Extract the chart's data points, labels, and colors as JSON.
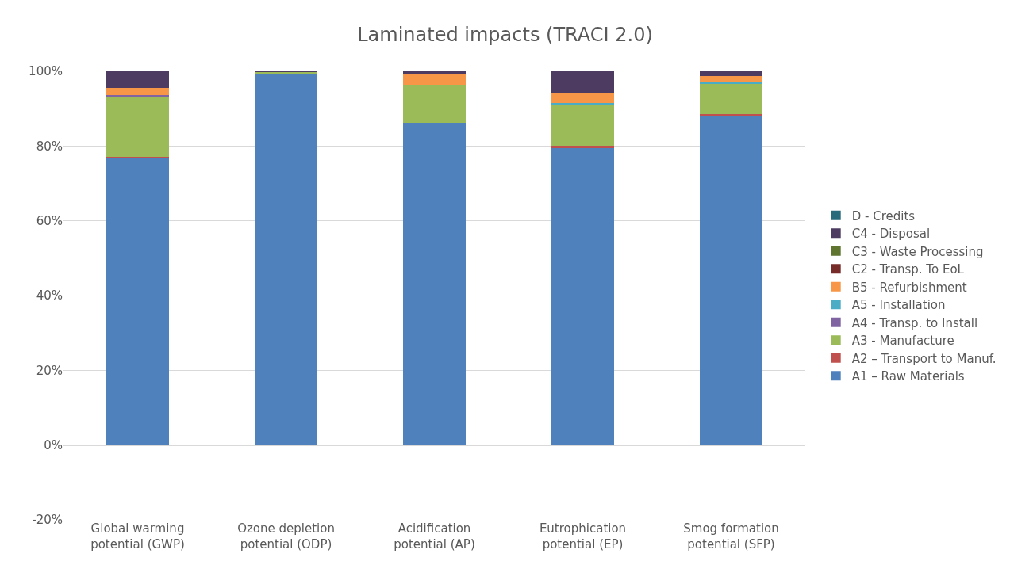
{
  "chart_data": {
    "type": "bar",
    "title": "Laminated impacts (TRACI 2.0)",
    "stacked": true,
    "categories": [
      "Global warming\npotential (GWP)",
      "Ozone depletion\npotential (ODP)",
      "Acidification\npotential (AP)",
      "Eutrophication\npotential (EP)",
      "Smog formation\npotential (SFP)"
    ],
    "series": [
      {
        "name": "A1 – Raw Materials",
        "color": "#4f81bd",
        "values": [
          76.8,
          99.2,
          86.2,
          79.6,
          88.2
        ]
      },
      {
        "name": "A2 – Transport to Manuf.",
        "color": "#c0504d",
        "values": [
          0.4,
          0,
          0,
          0.4,
          0.3
        ]
      },
      {
        "name": "A3 - Manufacture",
        "color": "#9bbb59",
        "values": [
          16.2,
          0.6,
          10.3,
          11.3,
          8.3
        ]
      },
      {
        "name": "A4 - Transp. to Install",
        "color": "#8064a2",
        "values": [
          0.3,
          0,
          0,
          0,
          0
        ]
      },
      {
        "name": "A5 - Installation",
        "color": "#4bacc6",
        "values": [
          0,
          0,
          0,
          0.3,
          0.3
        ]
      },
      {
        "name": "B5 - Refurbishment",
        "color": "#f79646",
        "values": [
          1.9,
          0,
          2.7,
          2.5,
          1.7
        ]
      },
      {
        "name": "C2 - Transp. To EoL",
        "color": "#772c2a",
        "values": [
          0,
          0,
          0,
          0,
          0
        ]
      },
      {
        "name": "C3 - Waste Processing",
        "color": "#5f7530",
        "values": [
          0,
          0,
          0,
          0,
          0
        ]
      },
      {
        "name": "C4 - Disposal",
        "color": "#4d3b62",
        "values": [
          4.4,
          0.2,
          0.8,
          5.9,
          1.2
        ]
      },
      {
        "name": "D - Credits",
        "color": "#276a7c",
        "values": [
          0,
          0,
          0,
          0,
          0
        ]
      }
    ],
    "ylim": [
      -20,
      100
    ],
    "yticks": [
      {
        "value": -20,
        "label": "-20%"
      },
      {
        "value": 0,
        "label": "0%"
      },
      {
        "value": 20,
        "label": "20%"
      },
      {
        "value": 40,
        "label": "40%"
      },
      {
        "value": 60,
        "label": "60%"
      },
      {
        "value": 80,
        "label": "80%"
      },
      {
        "value": 100,
        "label": "100%"
      }
    ],
    "grid": "y",
    "legend": "right"
  }
}
